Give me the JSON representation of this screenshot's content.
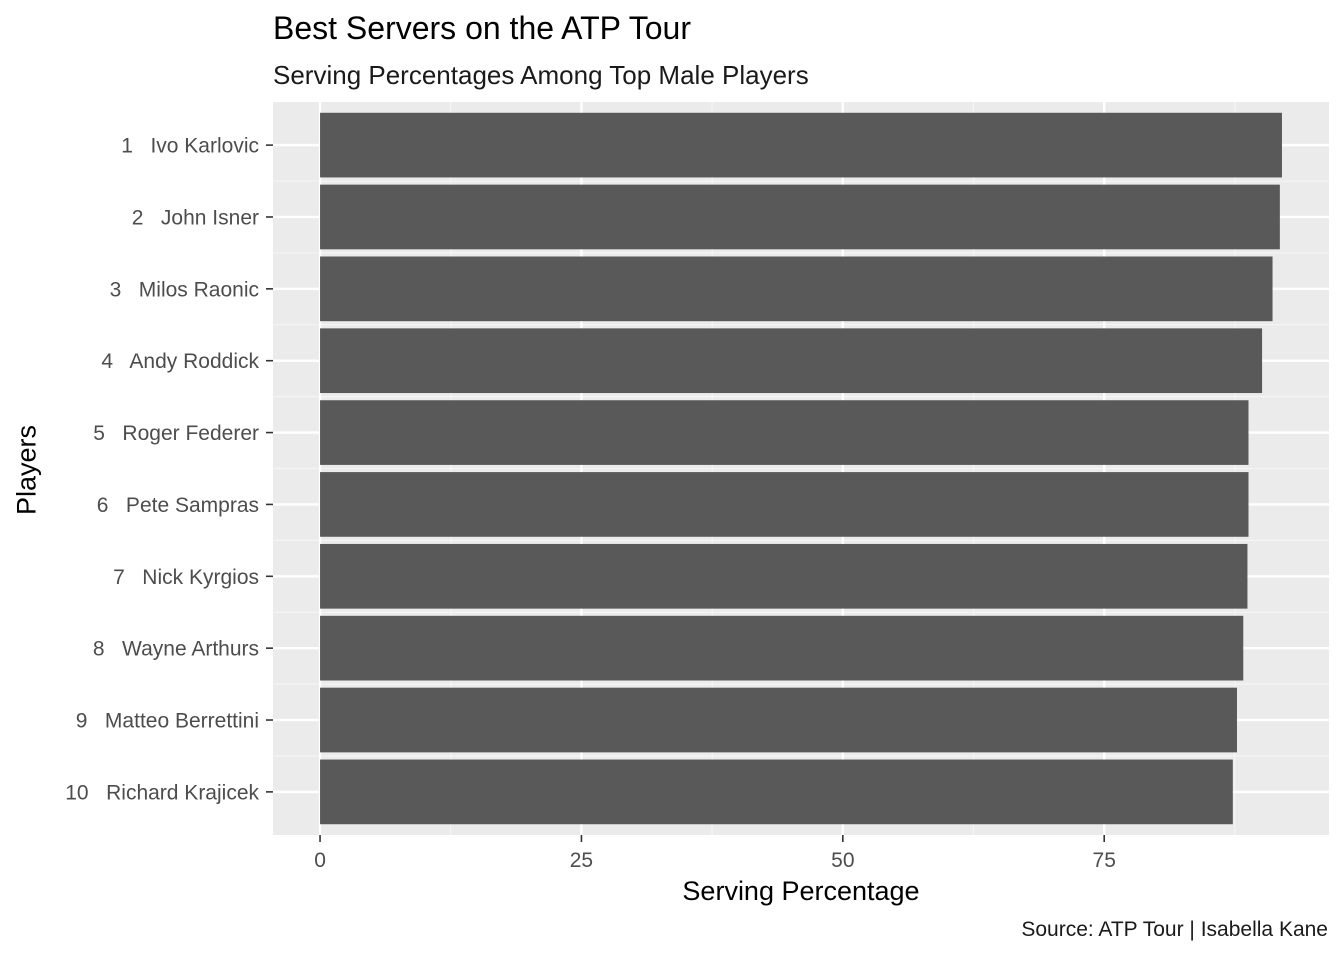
{
  "chart_data": {
    "type": "bar",
    "orientation": "horizontal",
    "title": "Best Servers on the ATP Tour",
    "subtitle": "Serving Percentages Among Top Male Players",
    "caption": "Source: ATP Tour | Isabella Kane",
    "xlabel": "Serving Percentage",
    "ylabel": "Players",
    "categories": [
      "1   Ivo Karlovic",
      "2   John Isner",
      "3   Milos Raonic",
      "4   Andy Roddick",
      "5   Roger Federer",
      "6   Pete Sampras",
      "7   Nick Kyrgios",
      "8   Wayne Arthurs",
      "9   Matteo Berrettini",
      "10   Richard Krajicek"
    ],
    "values": [
      92.0,
      91.8,
      91.1,
      90.1,
      88.8,
      88.8,
      88.7,
      88.3,
      87.7,
      87.3
    ],
    "xlim": [
      -4.5,
      96.5
    ],
    "xticks": [
      0,
      25,
      50,
      75
    ],
    "xtick_labels": [
      "0",
      "25",
      "50",
      "75"
    ],
    "grid": true,
    "colors": {
      "bar": "#595959",
      "panel": "#ebebeb",
      "grid_major": "#ffffff",
      "grid_minor": "#f5f5f5",
      "tick_text": "#4d4d4d"
    }
  }
}
